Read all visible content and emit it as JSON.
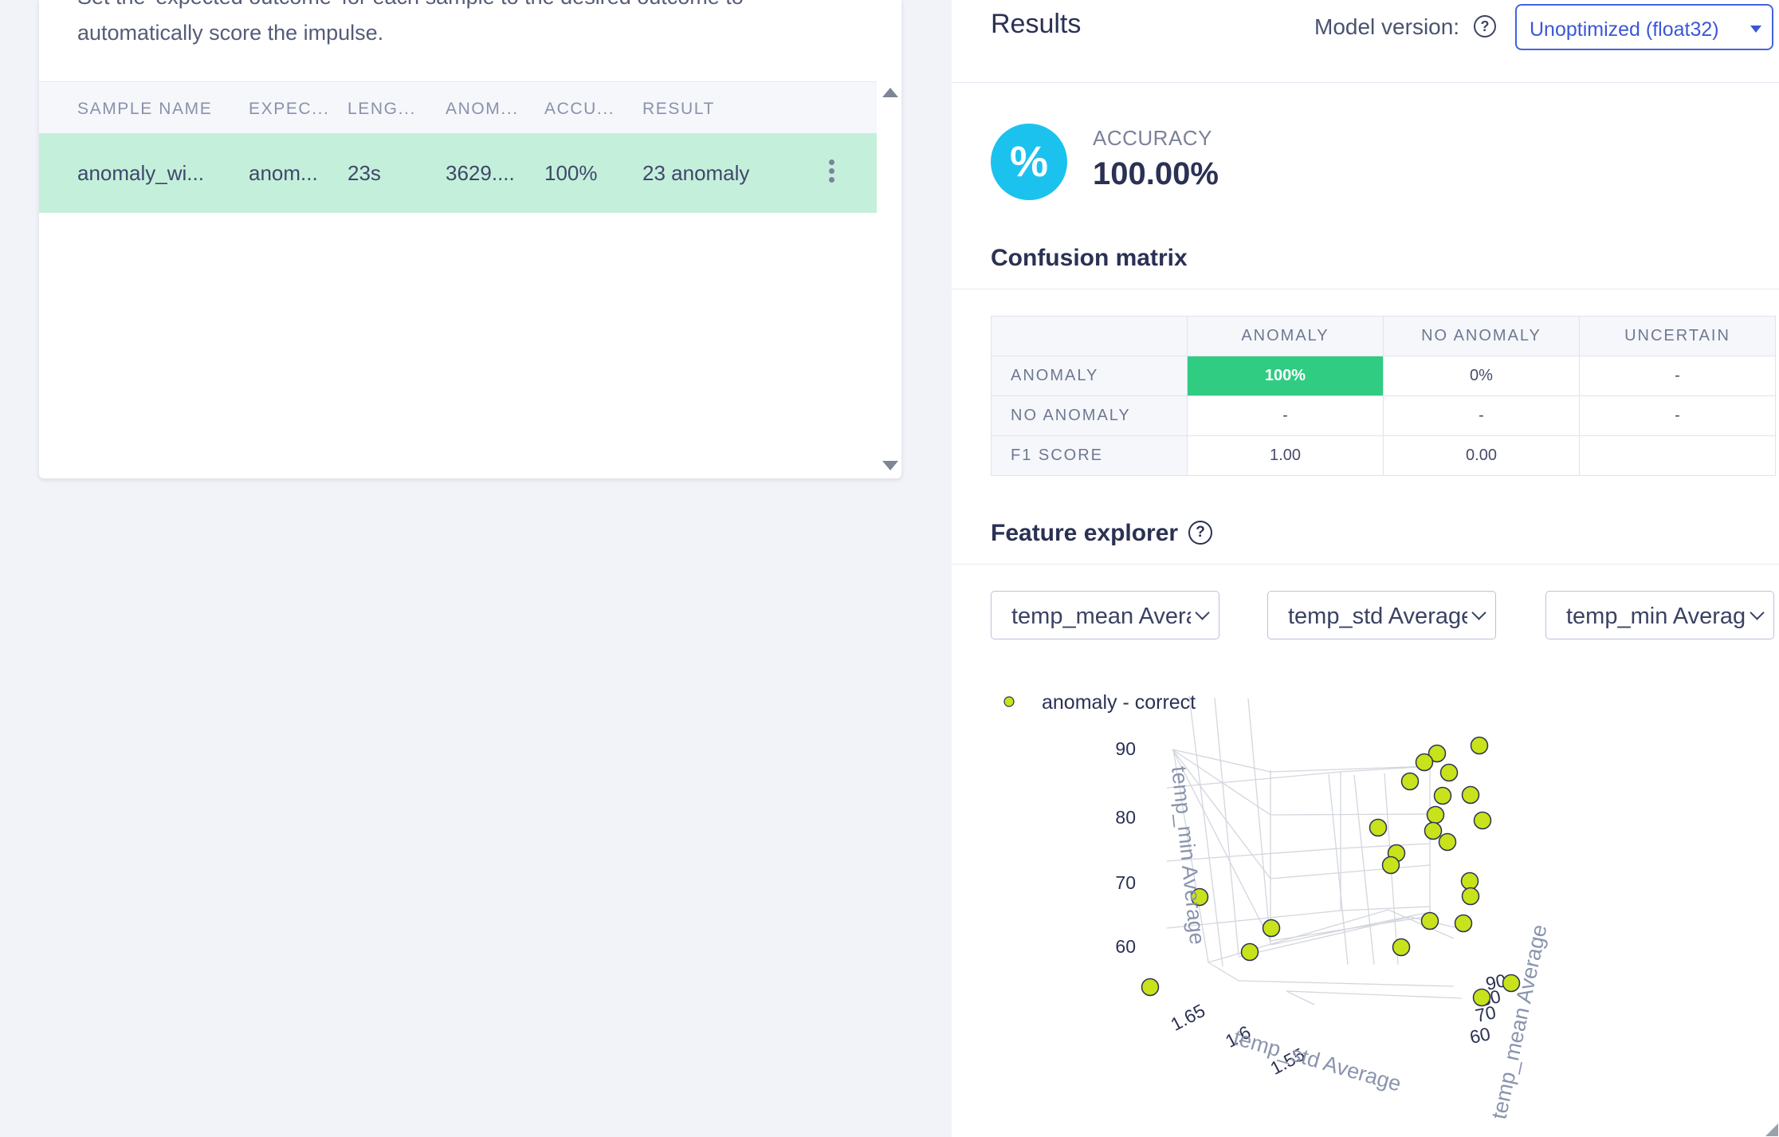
{
  "left_panel": {
    "description_line1": "Set the 'expected outcome' for each sample to the desired outcome to",
    "description_line2": "automatically score the impulse.",
    "table": {
      "headers": [
        "SAMPLE NAME",
        "EXPEC...",
        "LENG...",
        "ANOM...",
        "ACCU...",
        "RESULT"
      ],
      "rows": [
        {
          "sample_name": "anomaly_wi...",
          "expected": "anom...",
          "length": "23s",
          "anomaly": "3629....",
          "accuracy": "100%",
          "result": "23 anomaly"
        }
      ]
    }
  },
  "results": {
    "title": "Results",
    "model_version_label": "Model version:",
    "model_version_value": "Unoptimized (float32)",
    "accuracy_label": "ACCURACY",
    "accuracy_value": "100.00%",
    "accuracy_icon": "percent-icon"
  },
  "confusion_matrix": {
    "title": "Confusion matrix",
    "columns": [
      "ANOMALY",
      "NO ANOMALY",
      "UNCERTAIN"
    ],
    "rows": [
      {
        "label": "ANOMALY",
        "cells": [
          "100%",
          "0%",
          "-"
        ]
      },
      {
        "label": "NO ANOMALY",
        "cells": [
          "-",
          "-",
          "-"
        ]
      },
      {
        "label": "F1 SCORE",
        "cells": [
          "1.00",
          "0.00",
          ""
        ]
      }
    ],
    "highlight_color": "#2fcc82"
  },
  "feature_explorer": {
    "title": "Feature explorer",
    "selects": [
      "temp_mean Average",
      "temp_std Average",
      "temp_min Average"
    ]
  },
  "chart_data": {
    "type": "scatter",
    "title": "",
    "legend": [
      {
        "name": "anomaly - correct",
        "color": "#c8e21b"
      }
    ],
    "legend_placement": "top-left",
    "axes": {
      "x": {
        "label": "temp_std Average",
        "ticks": [
          "1.65",
          "1.6",
          "1.55"
        ]
      },
      "y": {
        "label": "temp_mean Average",
        "ticks": [
          "90",
          "80",
          "70",
          "60"
        ]
      },
      "z": {
        "label": "temp_min Average",
        "ticks": [
          "90",
          "80",
          "70",
          "60"
        ]
      }
    },
    "series": [
      {
        "name": "anomaly - correct",
        "count": 23
      }
    ]
  }
}
